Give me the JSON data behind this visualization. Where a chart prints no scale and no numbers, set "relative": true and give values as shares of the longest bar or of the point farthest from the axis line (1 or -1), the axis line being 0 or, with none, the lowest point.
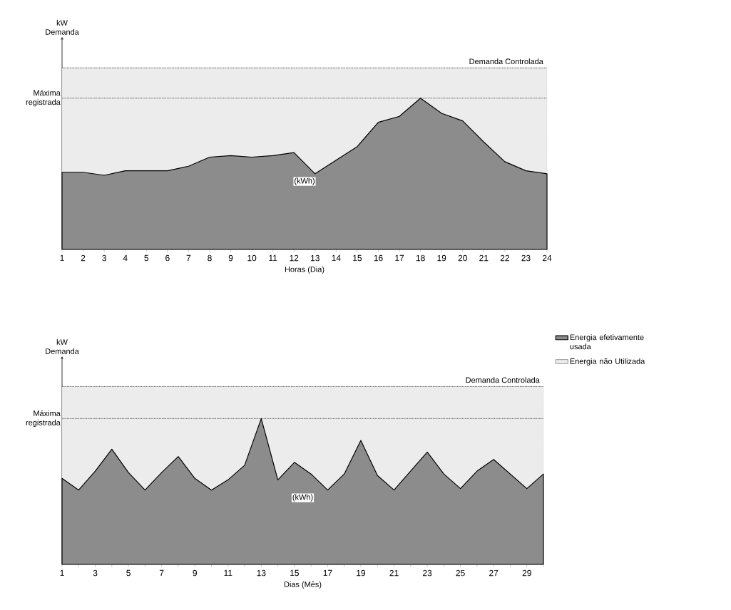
{
  "chart_data": [
    {
      "type": "area",
      "relative": true,
      "ylabel": "kW Demanda",
      "xlabel": "Horas (Dia)",
      "categories": [
        "1",
        "2",
        "3",
        "4",
        "5",
        "6",
        "7",
        "8",
        "9",
        "10",
        "11",
        "12",
        "13",
        "14",
        "15",
        "16",
        "17",
        "18",
        "19",
        "20",
        "21",
        "22",
        "23",
        "24"
      ],
      "series": [
        {
          "color": "#8c8c8c",
          "values": [
            0.51,
            0.51,
            0.49,
            0.52,
            0.52,
            0.52,
            0.55,
            0.61,
            0.62,
            0.61,
            0.62,
            0.64,
            0.5,
            0.59,
            0.68,
            0.84,
            0.88,
            1,
            0.9,
            0.85,
            0.71,
            0.58,
            0.52,
            0.5
          ]
        }
      ],
      "ref_lines": [
        {
          "axis": "y",
          "value": 1.2,
          "label": "Demanda Controlada"
        },
        {
          "axis": "y",
          "value": 1,
          "label": "Máxima registrada"
        }
      ],
      "bands": [
        {
          "axis": "y",
          "from": 0,
          "to": 1.2,
          "color": "#ececec"
        }
      ],
      "annotations": [
        "(kWh)"
      ]
    },
    {
      "type": "area",
      "relative": true,
      "ylabel": "kW Demanda",
      "xlabel": "Dias (Mês)",
      "categories": [
        "1",
        null,
        "3",
        null,
        "5",
        null,
        "7",
        null,
        "9",
        null,
        "11",
        null,
        "13",
        null,
        "15",
        null,
        "17",
        null,
        "19",
        null,
        "21",
        null,
        "23",
        null,
        "25",
        null,
        "27",
        null,
        "29",
        null
      ],
      "series": [
        {
          "name": "Energia efetivamente usada",
          "color": "#8c8c8c",
          "values": [
            0.59,
            0.51,
            0.64,
            0.79,
            0.63,
            0.51,
            0.63,
            0.74,
            0.59,
            0.51,
            0.58,
            0.68,
            1,
            0.58,
            0.7,
            0.62,
            0.51,
            0.62,
            0.85,
            0.61,
            0.51,
            0.64,
            0.77,
            0.62,
            0.52,
            0.64,
            0.72,
            0.62,
            0.52,
            0.62
          ]
        }
      ],
      "ref_lines": [
        {
          "axis": "y",
          "value": 1.22,
          "label": "Demanda Controlada"
        },
        {
          "axis": "y",
          "value": 1,
          "label": "Máxima registrada"
        }
      ],
      "bands": [
        {
          "axis": "y",
          "from": 0,
          "to": 1.22,
          "label": "Energia não Utilizada",
          "color": "#ececec"
        }
      ],
      "annotations": [
        "(kWh)"
      ],
      "legend": "right"
    }
  ]
}
